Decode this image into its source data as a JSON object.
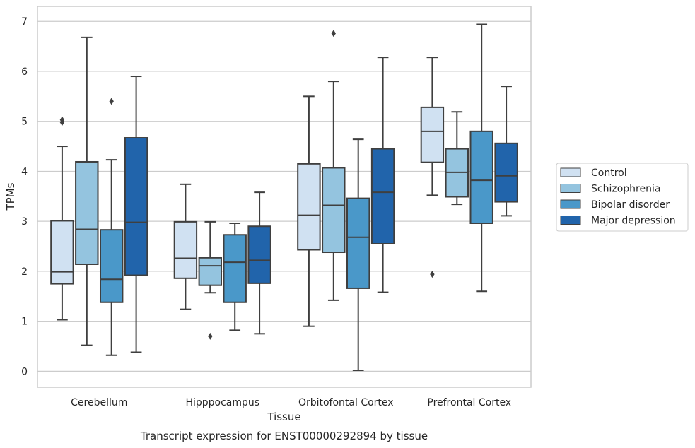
{
  "chart_data": {
    "type": "box",
    "caption": "Transcript expression for ENST00000292894 by tissue",
    "xlabel": "Tissue",
    "ylabel": "TPMs",
    "ylim": [
      -0.32,
      7.3
    ],
    "yticks": [
      0,
      1,
      2,
      3,
      4,
      5,
      6,
      7
    ],
    "grid": "horizontal",
    "legend_position": "right",
    "categories": [
      "Cerebellum",
      "Hipppocampus",
      "Orbitofontal Cortex",
      "Prefrontal Cortex"
    ],
    "series": [
      {
        "name": "Control",
        "color": "#d0e1f2",
        "boxes": [
          {
            "whislo": 1.03,
            "q1": 1.75,
            "med": 1.99,
            "q3": 3.01,
            "whishi": 4.5,
            "fliers": [
              4.98,
              5.03
            ]
          },
          {
            "whislo": 1.24,
            "q1": 1.86,
            "med": 2.26,
            "q3": 2.99,
            "whishi": 3.74,
            "fliers": []
          },
          {
            "whislo": 0.9,
            "q1": 2.43,
            "med": 3.12,
            "q3": 4.15,
            "whishi": 5.5,
            "fliers": []
          },
          {
            "whislo": 3.52,
            "q1": 4.18,
            "med": 4.8,
            "q3": 5.28,
            "whishi": 6.28,
            "fliers": [
              1.94
            ]
          }
        ]
      },
      {
        "name": "Schizophrenia",
        "color": "#94c4df",
        "boxes": [
          {
            "whislo": 0.52,
            "q1": 2.14,
            "med": 2.84,
            "q3": 4.19,
            "whishi": 6.68,
            "fliers": []
          },
          {
            "whislo": 1.57,
            "q1": 1.72,
            "med": 2.11,
            "q3": 2.27,
            "whishi": 2.99,
            "fliers": [
              0.7
            ]
          },
          {
            "whislo": 1.42,
            "q1": 2.38,
            "med": 3.32,
            "q3": 4.07,
            "whishi": 5.8,
            "fliers": [
              6.76
            ]
          },
          {
            "whislo": 3.34,
            "q1": 3.49,
            "med": 3.98,
            "q3": 4.45,
            "whishi": 5.19,
            "fliers": []
          }
        ]
      },
      {
        "name": "Bipolar disorder",
        "color": "#4a98c9",
        "boxes": [
          {
            "whislo": 0.32,
            "q1": 1.38,
            "med": 1.84,
            "q3": 2.83,
            "whishi": 4.23,
            "fliers": [
              5.4
            ]
          },
          {
            "whislo": 0.82,
            "q1": 1.38,
            "med": 2.18,
            "q3": 2.73,
            "whishi": 2.96,
            "fliers": []
          },
          {
            "whislo": 0.02,
            "q1": 1.66,
            "med": 2.68,
            "q3": 3.46,
            "whishi": 4.64,
            "fliers": []
          },
          {
            "whislo": 1.6,
            "q1": 2.96,
            "med": 3.82,
            "q3": 4.8,
            "whishi": 6.94,
            "fliers": []
          }
        ]
      },
      {
        "name": "Major depression",
        "color": "#2164ab",
        "boxes": [
          {
            "whislo": 0.38,
            "q1": 1.92,
            "med": 2.98,
            "q3": 4.67,
            "whishi": 5.9,
            "fliers": []
          },
          {
            "whislo": 0.75,
            "q1": 1.76,
            "med": 2.22,
            "q3": 2.9,
            "whishi": 3.58,
            "fliers": []
          },
          {
            "whislo": 1.58,
            "q1": 2.55,
            "med": 3.58,
            "q3": 4.45,
            "whishi": 6.28,
            "fliers": []
          },
          {
            "whislo": 3.11,
            "q1": 3.39,
            "med": 3.91,
            "q3": 4.56,
            "whishi": 5.7,
            "fliers": []
          }
        ]
      }
    ]
  }
}
